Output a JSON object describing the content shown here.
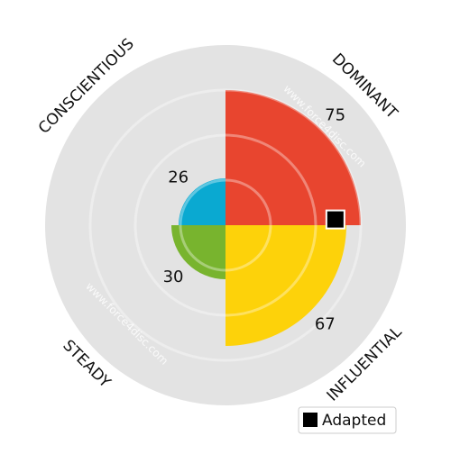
{
  "chart_data": {
    "type": "polar-bar",
    "categories": [
      "DOMINANT",
      "INFLUENTIAL",
      "STEADY",
      "CONSCIENTIOUS"
    ],
    "values": [
      75,
      67,
      30,
      26
    ],
    "colors": [
      "#e8452f",
      "#fdd20a",
      "#78b42e",
      "#0aa9d1"
    ],
    "rlim": [
      0,
      100
    ],
    "rticks": [
      25,
      50,
      75
    ],
    "adapted": {
      "name": "Adapted",
      "category": "DOMINANT",
      "value": 61
    },
    "watermarks": [
      "www.force4disc.com",
      "www.force4disc.com"
    ]
  }
}
